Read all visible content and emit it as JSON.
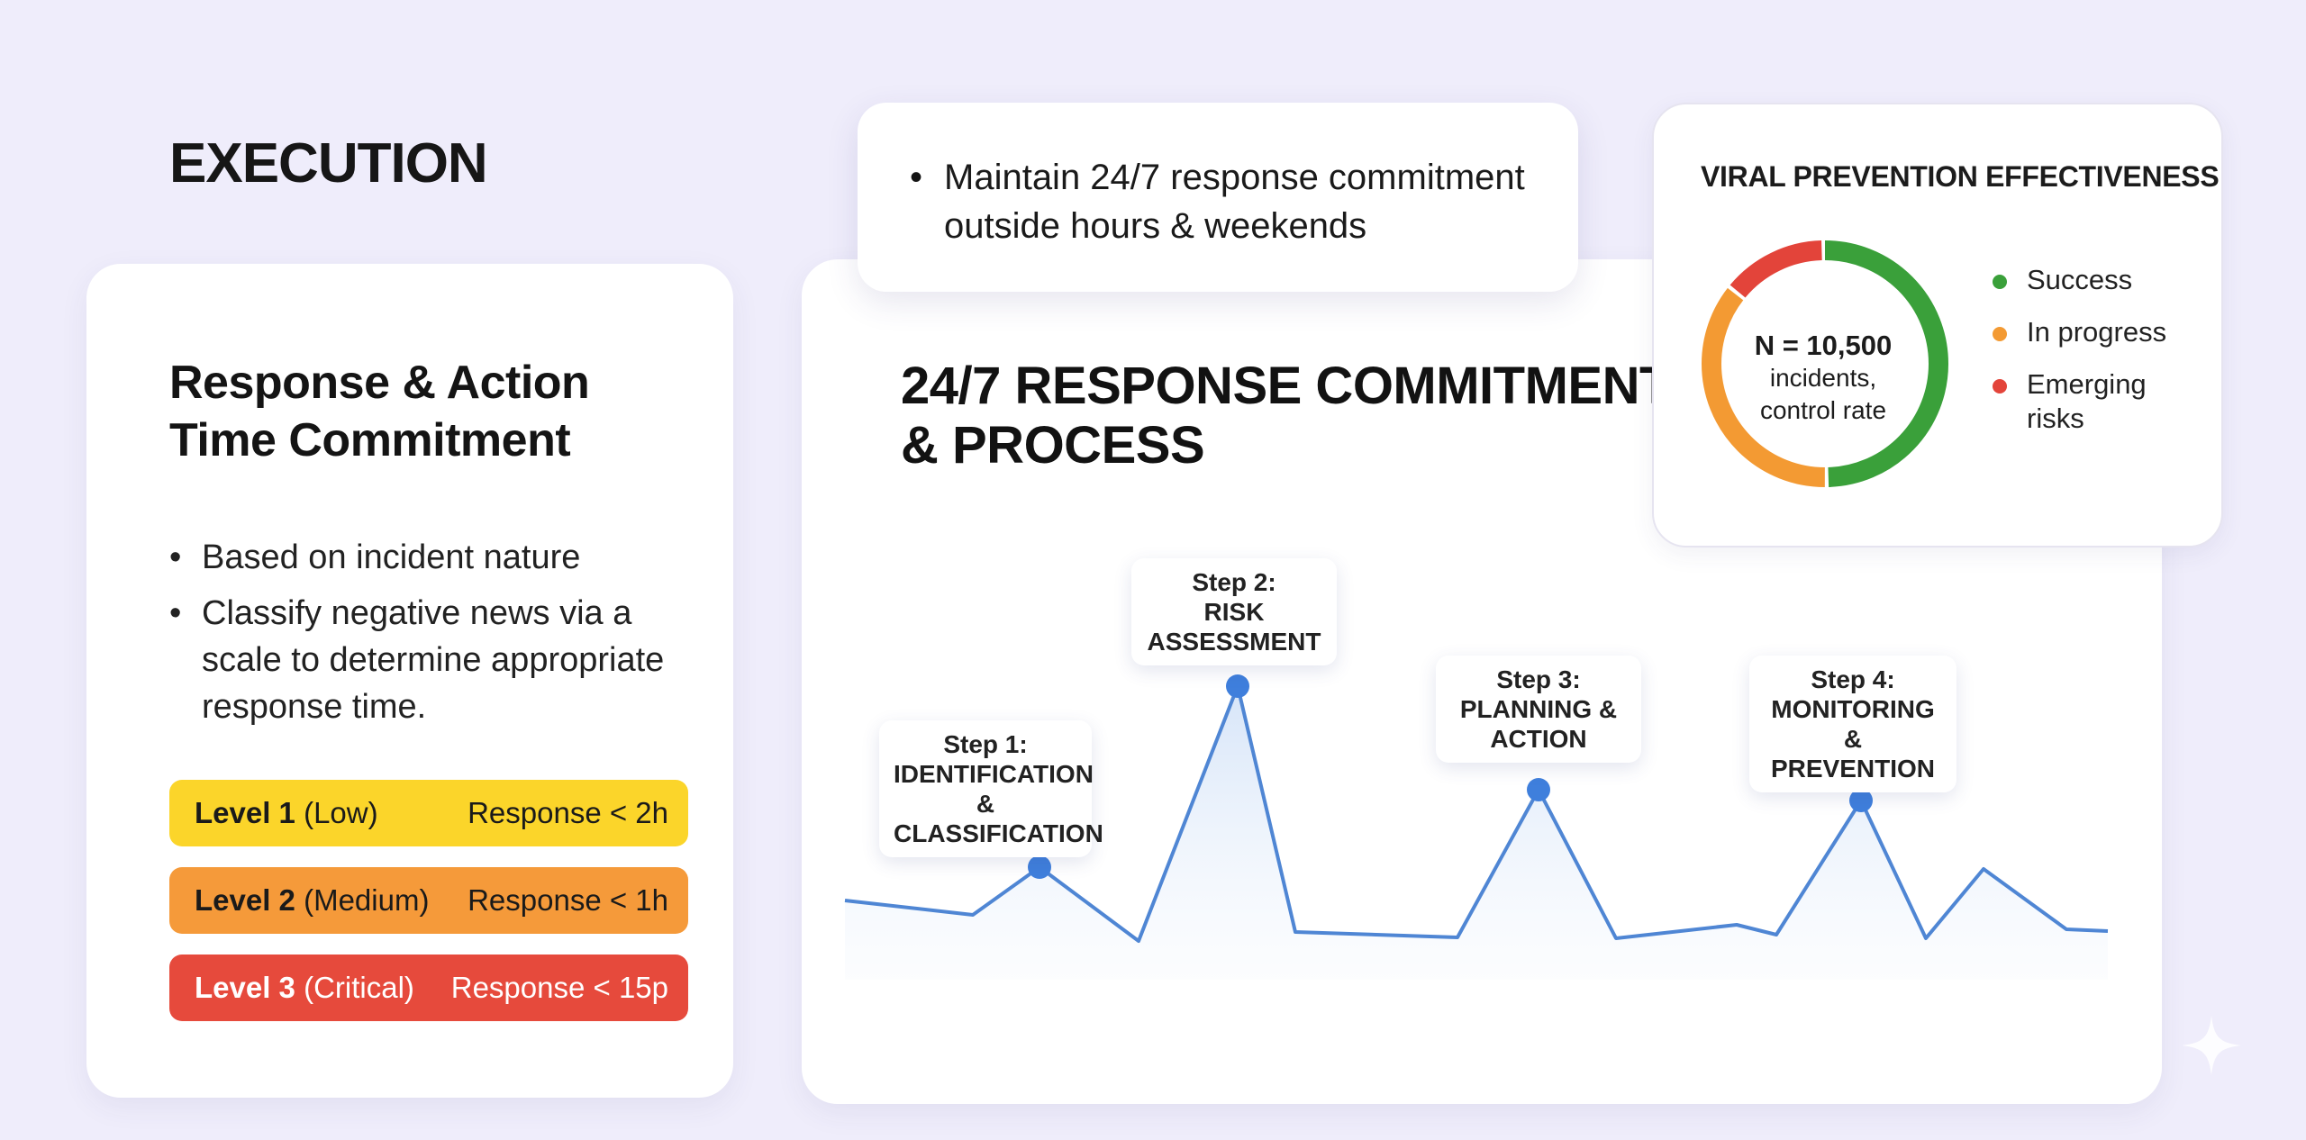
{
  "header": {
    "title": "EXECUTION"
  },
  "left_card": {
    "title": "Response & Action Time Commitment",
    "bullets": [
      "Based on incident nature",
      "Classify negative news via a scale to determine appropriate response time."
    ],
    "levels": [
      {
        "name": "Level 1",
        "severity": "(Low)",
        "response": "Response < 2h",
        "color": "#fbd52a"
      },
      {
        "name": "Level 2",
        "severity": "(Medium)",
        "response": "Response < 1h",
        "color": "#f59a3a"
      },
      {
        "name": "Level 3",
        "severity": "(Critical)",
        "response": "Response < 15p",
        "color": "#e64a3c"
      }
    ]
  },
  "commitment_card": {
    "text": "Maintain 24/7 response commitment outside hours & weekends"
  },
  "main_card": {
    "title": "24/7 RESPONSE COMMITMENT & PROCESS",
    "steps": [
      {
        "line1": "Step 1:",
        "line2": "IDENTIFICATION",
        "line3": "& CLASSIFICATION"
      },
      {
        "line1": "Step 2:",
        "line2": "RISK",
        "line3": "ASSESSMENT"
      },
      {
        "line1": "Step 3:",
        "line2": "PLANNING &",
        "line3": "ACTION"
      },
      {
        "line1": "Step 4:",
        "line2": "MONITORING",
        "line3": "& PREVENTION"
      }
    ],
    "line_color": "#4f86d4",
    "marker_color": "#3f7fdc"
  },
  "donut_card": {
    "title": "VIRAL PREVENTION EFFECTIVENESS",
    "center_n": "N = 10,500",
    "center_line2": "incidents,",
    "center_line3": "control rate",
    "segments": [
      {
        "label": "Success",
        "fraction": 0.5,
        "color": "#3aa03a"
      },
      {
        "label": "In progress",
        "fraction": 0.36,
        "color": "#f39a33"
      },
      {
        "label": "Emerging risks",
        "fraction": 0.14,
        "color": "#e3443a"
      }
    ]
  },
  "decor": {
    "sparkle_icon": "sparkle-icon"
  }
}
